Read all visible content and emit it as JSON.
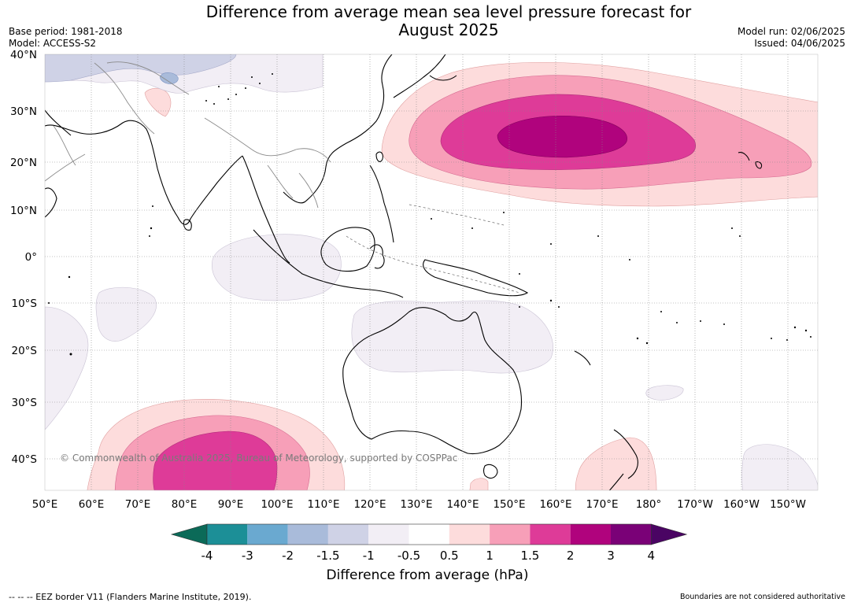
{
  "title": {
    "line1": "Difference from average mean sea level pressure forecast for",
    "line2": "August 2025"
  },
  "meta": {
    "base_period": "Base period: 1981-2018",
    "model": "Model: ACCESS-S2",
    "model_run": "Model run: 02/06/2025",
    "issued": "Issued: 04/06/2025"
  },
  "map": {
    "lat_labels": [
      "40°N",
      "30°N",
      "20°N",
      "10°N",
      "0°",
      "10°S",
      "20°S",
      "30°S",
      "40°S"
    ],
    "lon_labels": [
      "50°E",
      "60°E",
      "70°E",
      "80°E",
      "90°E",
      "100°E",
      "110°E",
      "120°E",
      "130°E",
      "140°E",
      "150°E",
      "160°E",
      "170°E",
      "180°",
      "170°W",
      "160°W",
      "150°W"
    ],
    "copyright": "© Commonwealth of Australia 2025, Bureau of Meteorology, supported by COSPPac",
    "grid": "dotted"
  },
  "colorbar": {
    "label": "Difference from average (hPa)",
    "ticks": [
      "-4",
      "-3",
      "-2",
      "-1.5",
      "-1",
      "-0.5",
      "0.5",
      "1",
      "1.5",
      "2",
      "3",
      "4"
    ],
    "colors": {
      "below_-4": "#0b6a58",
      "-4_-3": "#1c8f97",
      "-3_-2": "#6aa9d0",
      "-2_-1.5": "#a9bbda",
      "-1.5_-1": "#cfd2e6",
      "-1_-0.5": "#f2eef5",
      "-0.5_0.5": "#ffffff",
      "0.5_1": "#fddcdc",
      "1_1.5": "#f79fb8",
      "1.5_2": "#de3b98",
      "2_3": "#b0037d",
      "3_4": "#7a0177",
      "above_4": "#4a0463"
    }
  },
  "footer": {
    "eez": "--  --  -- EEZ border V11 (Flanders Marine Institute, 2019).",
    "boundaries": "Boundaries are not considered authoritative"
  }
}
